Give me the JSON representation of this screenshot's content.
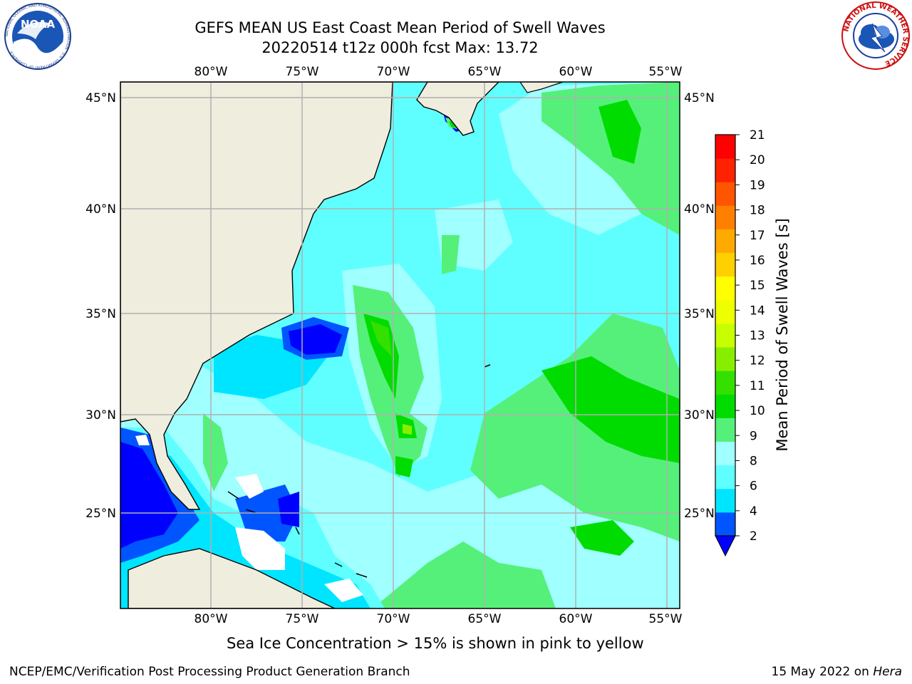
{
  "header": {
    "title_line1": "GEFS MEAN US East Coast Mean Period of Swell Waves",
    "title_line2": "20220514 t12z 000h fcst   Max: 13.72"
  },
  "logos": {
    "left": {
      "icon": "noaa-logo",
      "text": "NOAA",
      "ring_text": "NATIONAL OCEANIC AND ATMOSPHERIC ADMINISTRATION · U.S. DEPARTMENT OF COMMERCE"
    },
    "right": {
      "icon": "nws-logo",
      "ring_text": "NATIONAL WEATHER SERVICE"
    }
  },
  "map": {
    "lon_labels": [
      "80°W",
      "75°W",
      "70°W",
      "65°W",
      "60°W",
      "55°W"
    ],
    "lat_labels": [
      "45°N",
      "40°N",
      "35°N",
      "30°N",
      "25°N"
    ],
    "colors": {
      "ocean_base": "#60ffff",
      "land": "#efeddd",
      "grid": "#b0b0b0",
      "coast": "#000000"
    }
  },
  "colorbar": {
    "label": "Mean Period of Swell Waves [s]",
    "ticks": [
      "2",
      "4",
      "6",
      "8",
      "9",
      "10",
      "11",
      "12",
      "13",
      "14",
      "15",
      "16",
      "17",
      "18",
      "19",
      "20",
      "21"
    ],
    "colors": [
      "#0055ff",
      "#00e5ff",
      "#60ffff",
      "#a0ffff",
      "#55f07a",
      "#00dc00",
      "#33e000",
      "#88ee00",
      "#c8ff00",
      "#eeff00",
      "#ffff00",
      "#ffd000",
      "#ffaa00",
      "#ff8000",
      "#ff5500",
      "#ff2200",
      "#ff0000"
    ],
    "extend_color": "#0000ff"
  },
  "notes": {
    "sea_ice": "Sea Ice Concentration > 15% is shown in pink to yellow",
    "footer_left": "NCEP/EMC/Verification Post Processing Product Generation Branch",
    "footer_date": "15 May 2022 on ",
    "footer_machine": "Hera"
  }
}
